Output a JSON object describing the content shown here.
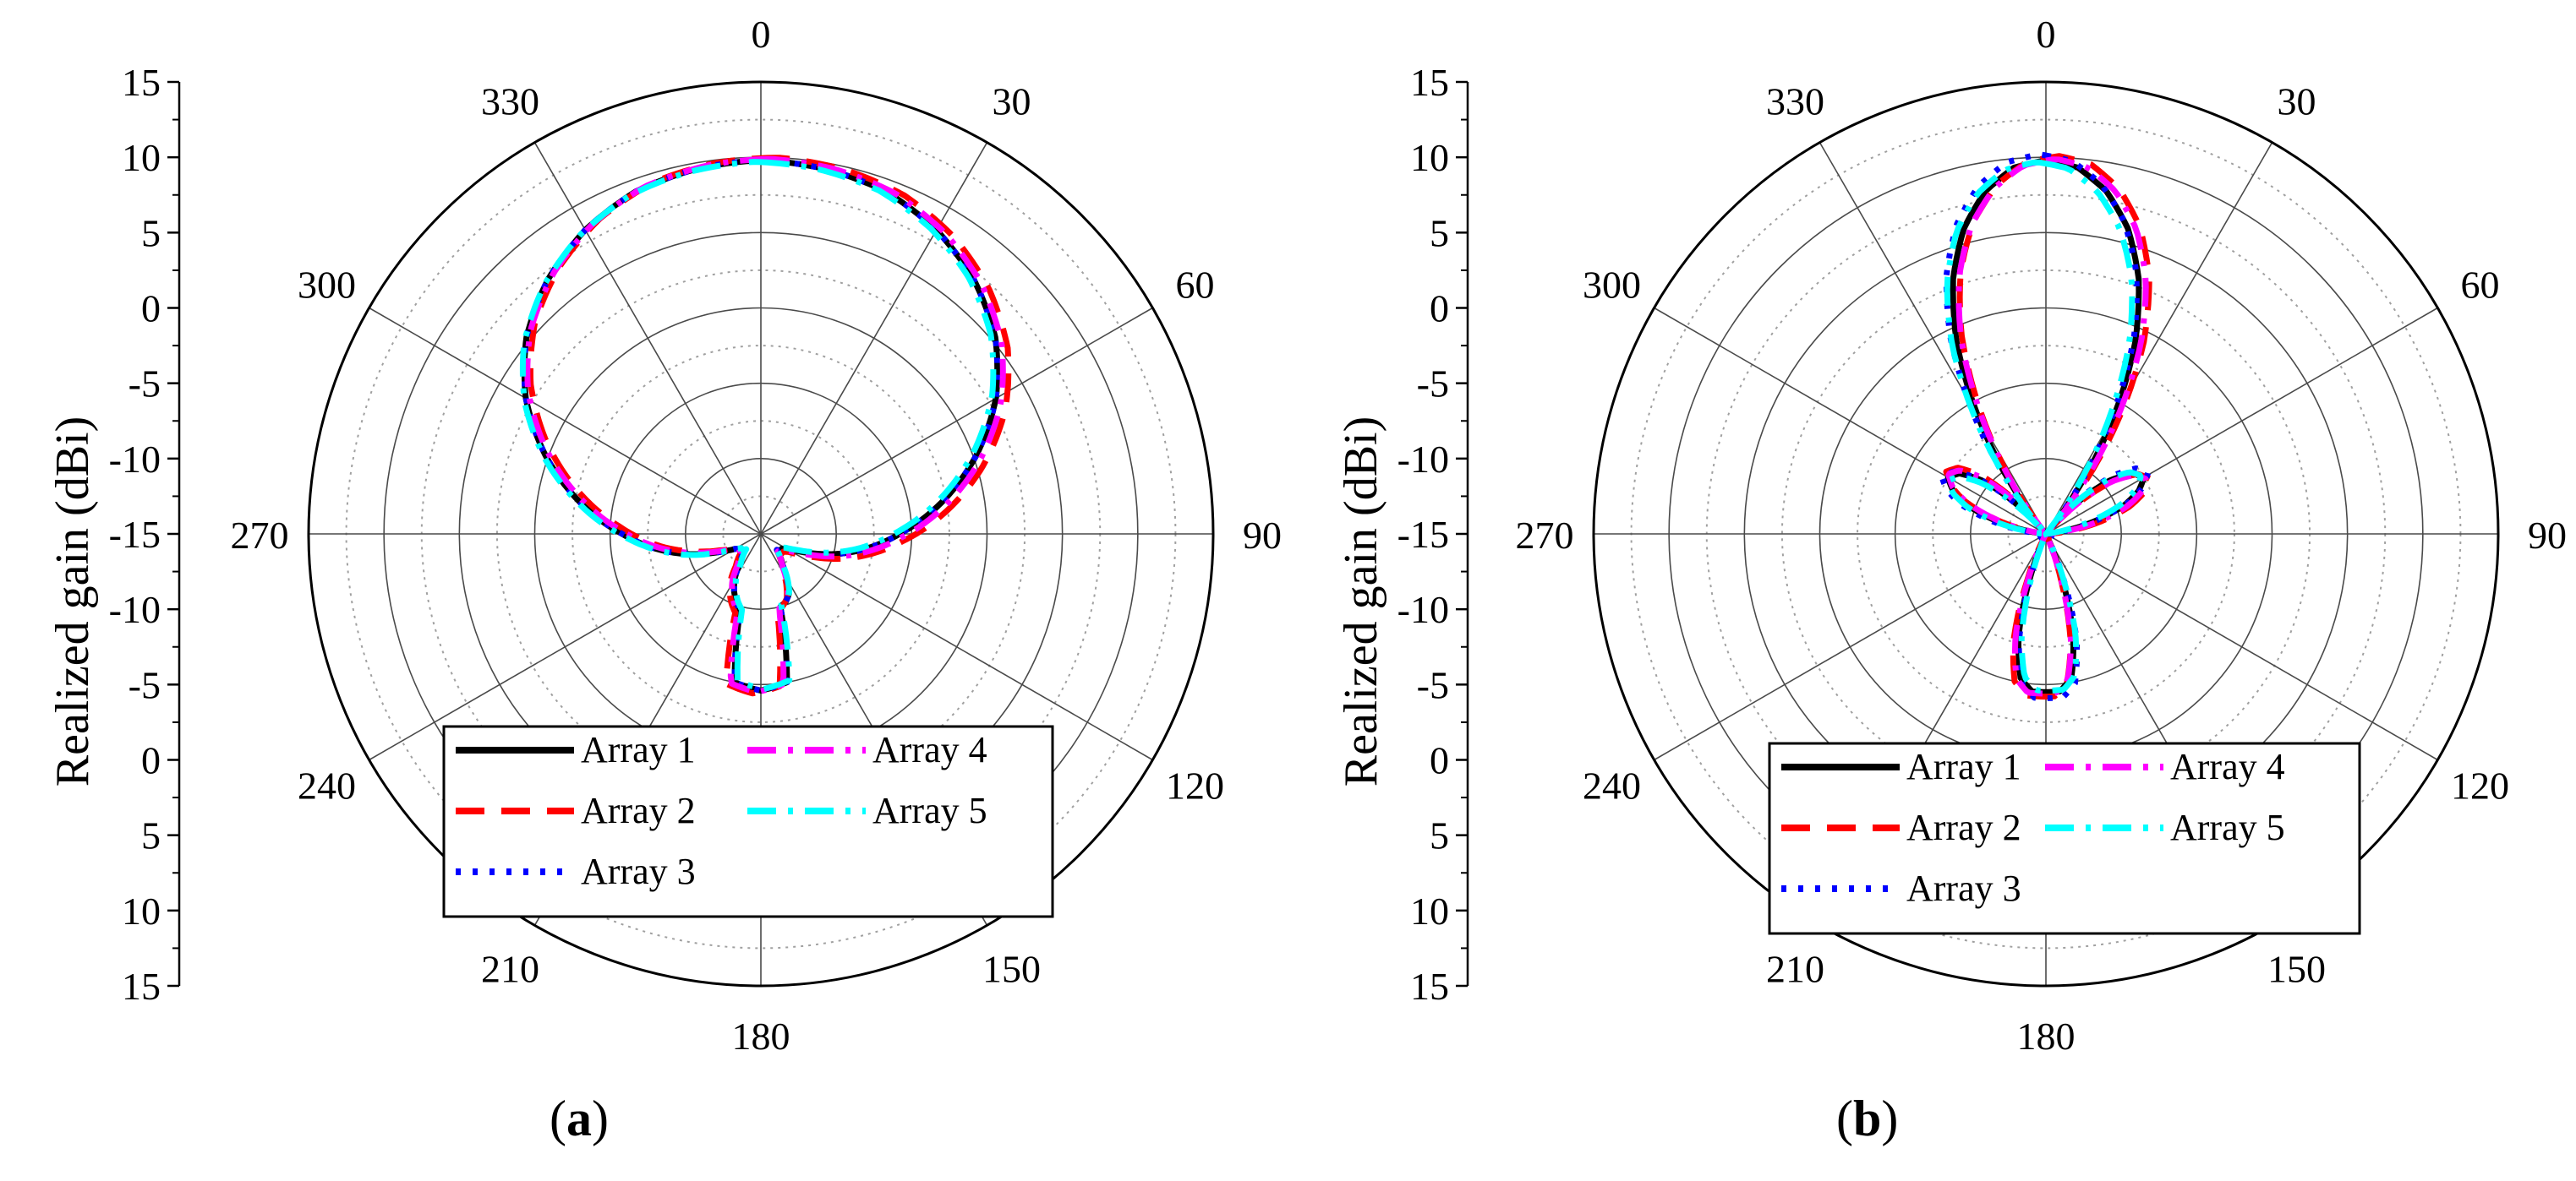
{
  "chart_data": [
    {
      "type": "polar-line",
      "panel_label": "a",
      "caption": {
        "open": "(",
        "letter": "a",
        "close": ")"
      },
      "ylabel": "Realized gain (dBi)",
      "r_range_dbi": [
        -15,
        15
      ],
      "radial_tick_labels": [
        "15",
        "10",
        "5",
        "0",
        "-5",
        "-10",
        "-15",
        "-10",
        "-5",
        "0",
        "5",
        "10",
        "15"
      ],
      "angle_tick_labels": [
        "0",
        "30",
        "60",
        "90",
        "120",
        "150",
        "180",
        "210",
        "240",
        "270",
        "300",
        "330"
      ],
      "grid": true,
      "legend_position": "bottom-center",
      "legend_layout": [
        [
          "Array 1",
          "Array 4"
        ],
        [
          "Array 2",
          "Array 5"
        ],
        [
          "Array 3"
        ]
      ],
      "series": [
        {
          "name": "Array 1",
          "color": "#000000",
          "style": "solid",
          "angle_offset_deg": 0,
          "gain_offset_db": 0
        },
        {
          "name": "Array 2",
          "color": "#ff0000",
          "style": "dash",
          "angle_offset_deg": 3,
          "gain_offset_db": 0.2
        },
        {
          "name": "Array 3",
          "color": "#0000ff",
          "style": "dot",
          "angle_offset_deg": 0,
          "gain_offset_db": 0
        },
        {
          "name": "Array 4",
          "color": "#ff00ff",
          "style": "dashdot",
          "angle_offset_deg": 1.5,
          "gain_offset_db": 0.1
        },
        {
          "name": "Array 5",
          "color": "#00ffff",
          "style": "dashdot",
          "angle_offset_deg": -1,
          "gain_offset_db": -0.1
        }
      ],
      "pattern": {
        "angles_deg": [
          0,
          10,
          20,
          30,
          40,
          50,
          60,
          70,
          80,
          90,
          100,
          110,
          115,
          120,
          125,
          130,
          135,
          140,
          145,
          150,
          155,
          160,
          165,
          170,
          180,
          190,
          195,
          200,
          205,
          210,
          215,
          220,
          225,
          230,
          235,
          240,
          245,
          250,
          260,
          270,
          280,
          290,
          300,
          310,
          320,
          330,
          340,
          350,
          360
        ],
        "gain_dbi": [
          9.8,
          9.6,
          9.2,
          8.3,
          7.0,
          5.3,
          3.0,
          0.2,
          -2.8,
          -5.8,
          -8.5,
          -11.2,
          -12.3,
          -13.0,
          -13.3,
          -13.3,
          -13.5,
          -13.0,
          -12.5,
          -11.5,
          -10.6,
          -10.2,
          -10.0,
          -5.0,
          -4.6,
          -5.0,
          -9.7,
          -10.2,
          -10.8,
          -11.5,
          -12.5,
          -13.0,
          -13.5,
          -13.3,
          -13.3,
          -13.0,
          -12.3,
          -11.2,
          -8.5,
          -5.8,
          -2.8,
          0.2,
          3.0,
          5.3,
          7.0,
          8.3,
          9.2,
          9.6,
          9.8
        ]
      }
    },
    {
      "type": "polar-line",
      "panel_label": "b",
      "caption": {
        "open": "(",
        "letter": "b",
        "close": ")"
      },
      "ylabel": "Realized gain (dBi)",
      "r_range_dbi": [
        -15,
        15
      ],
      "radial_tick_labels": [
        "15",
        "10",
        "5",
        "0",
        "-5",
        "-10",
        "-15",
        "-10",
        "-5",
        "0",
        "5",
        "10",
        "15"
      ],
      "angle_tick_labels": [
        "0",
        "30",
        "60",
        "90",
        "120",
        "150",
        "180",
        "210",
        "240",
        "270",
        "300",
        "330"
      ],
      "grid": true,
      "legend_position": "bottom-center",
      "legend_layout": [
        [
          "Array 1",
          "Array 4"
        ],
        [
          "Array 2",
          "Array 5"
        ],
        [
          "Array 3"
        ]
      ],
      "series": [
        {
          "name": "Array 1",
          "color": "#000000",
          "style": "solid",
          "angle_offset_deg": 0,
          "gain_offset_db": 0
        },
        {
          "name": "Array 2",
          "color": "#ff0000",
          "style": "dash",
          "angle_offset_deg": 2,
          "gain_offset_db": 0.3
        },
        {
          "name": "Array 3",
          "color": "#0000ff",
          "style": "dot",
          "angle_offset_deg": -1,
          "gain_offset_db": 0.4
        },
        {
          "name": "Array 4",
          "color": "#ff00ff",
          "style": "dashdot",
          "angle_offset_deg": 1.5,
          "gain_offset_db": 0.1
        },
        {
          "name": "Array 5",
          "color": "#00ffff",
          "style": "dashdot",
          "angle_offset_deg": -1.5,
          "gain_offset_db": -0.1
        }
      ],
      "pattern": {
        "angles_deg": [
          0,
          5,
          10,
          15,
          20,
          25,
          30,
          35,
          40,
          45,
          50,
          55,
          60,
          65,
          70,
          75,
          80,
          85,
          90,
          95,
          100,
          105,
          110,
          115,
          120,
          125,
          130,
          135,
          140,
          145,
          150,
          155,
          160,
          165,
          170,
          175,
          180,
          185,
          190,
          195,
          200,
          205,
          210,
          215,
          220,
          225,
          230,
          235,
          240,
          245,
          250,
          255,
          260,
          265,
          270,
          275,
          280,
          285,
          290,
          295,
          300,
          305,
          310,
          315,
          320,
          325,
          330,
          335,
          340,
          345,
          350,
          355,
          360
        ],
        "gain_dbi": [
          9.8,
          9.4,
          8.1,
          6.0,
          3.0,
          -1.0,
          -6.0,
          -11.0,
          -15.0,
          -12.0,
          -9.5,
          -8.0,
          -7.5,
          -8.2,
          -9.5,
          -11.5,
          -13.5,
          -15.0,
          -15.0,
          -15.0,
          -15.0,
          -15.0,
          -15.0,
          -15.0,
          -15.0,
          -15.0,
          -15.0,
          -15.0,
          -15.0,
          -15.0,
          -15.0,
          -15.0,
          -12.0,
          -8.0,
          -5.3,
          -4.5,
          -4.5,
          -4.5,
          -5.3,
          -8.0,
          -12.0,
          -15.0,
          -15.0,
          -15.0,
          -15.0,
          -15.0,
          -15.0,
          -15.0,
          -15.0,
          -15.0,
          -15.0,
          -15.0,
          -15.0,
          -15.0,
          -15.0,
          -15.0,
          -13.5,
          -11.5,
          -9.5,
          -8.2,
          -7.5,
          -8.0,
          -9.5,
          -12.0,
          -15.0,
          -11.0,
          -6.0,
          -1.0,
          3.0,
          6.0,
          8.1,
          9.4,
          9.8
        ]
      }
    }
  ]
}
